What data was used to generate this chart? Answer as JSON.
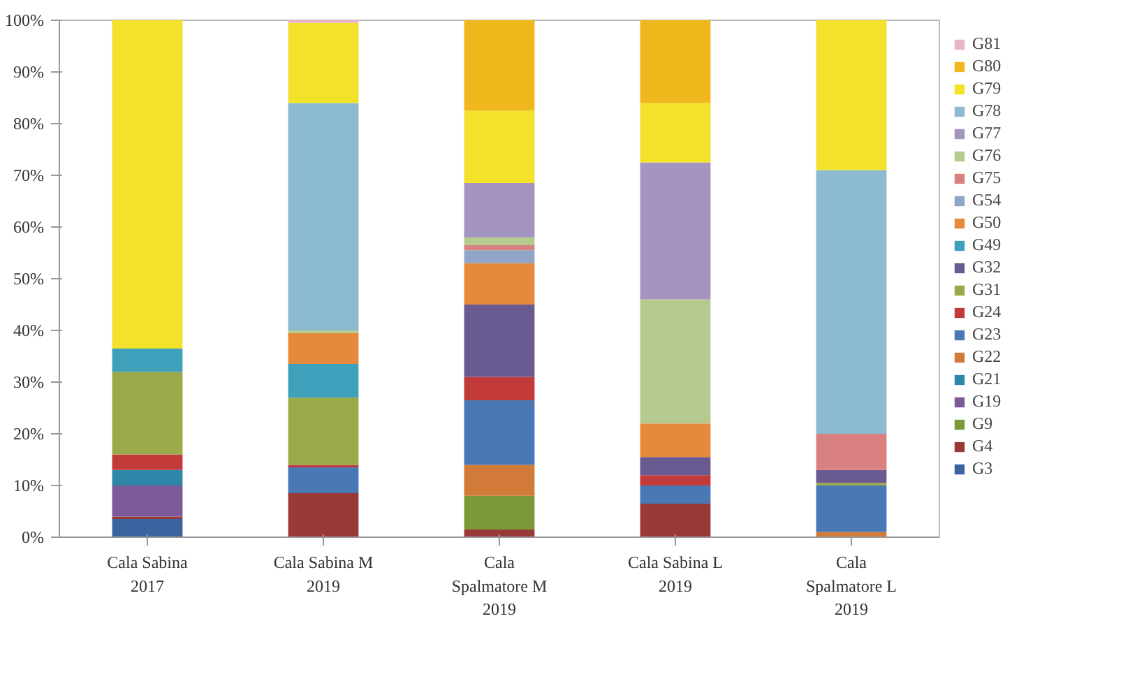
{
  "chart_data": {
    "type": "bar",
    "stacked": true,
    "legend": "right",
    "grid": false,
    "categories": [
      "Cala Sabina\n2017",
      "Cala Sabina M\n2019",
      "Cala\nSpalmatore M\n2019",
      "Cala Sabina L\n2019",
      "Cala\nSpalmatore L\n2019"
    ],
    "ylim": [
      0,
      100
    ],
    "yticks": [
      {
        "value": 0,
        "label": "0%"
      },
      {
        "value": 10,
        "label": "10%"
      },
      {
        "value": 20,
        "label": "20%"
      },
      {
        "value": 30,
        "label": "30%"
      },
      {
        "value": 40,
        "label": "40%"
      },
      {
        "value": 50,
        "label": "50%"
      },
      {
        "value": 60,
        "label": "60%"
      },
      {
        "value": 70,
        "label": "70%"
      },
      {
        "value": 80,
        "label": "80%"
      },
      {
        "value": 90,
        "label": "90%"
      },
      {
        "value": 100,
        "label": "100%"
      }
    ],
    "series": [
      {
        "name": "G3",
        "color": "#3a64a0",
        "values": [
          3.5,
          0,
          0,
          0,
          0
        ]
      },
      {
        "name": "G4",
        "color": "#9a3a38",
        "values": [
          0.5,
          8.5,
          1.5,
          6.5,
          0
        ]
      },
      {
        "name": "G9",
        "color": "#7a9a3a",
        "values": [
          0,
          0,
          6.5,
          0,
          0
        ]
      },
      {
        "name": "G19",
        "color": "#7a5a98",
        "values": [
          6,
          0,
          0,
          0,
          0
        ]
      },
      {
        "name": "G21",
        "color": "#2e86a8",
        "values": [
          3,
          0,
          0,
          0,
          0
        ]
      },
      {
        "name": "G22",
        "color": "#d27a38",
        "values": [
          0,
          0,
          6,
          0,
          1
        ]
      },
      {
        "name": "G23",
        "color": "#4a78b4",
        "values": [
          0,
          5,
          12.5,
          3.5,
          9
        ]
      },
      {
        "name": "G24",
        "color": "#c23a3a",
        "values": [
          3,
          0.5,
          4.5,
          2,
          0
        ]
      },
      {
        "name": "G31",
        "color": "#9aaa4a",
        "values": [
          16,
          13,
          0,
          0,
          0.5
        ]
      },
      {
        "name": "G32",
        "color": "#6a5a92",
        "values": [
          0,
          0,
          14,
          3.5,
          2.5
        ]
      },
      {
        "name": "G49",
        "color": "#3fa0bc",
        "values": [
          4.5,
          6.5,
          0,
          0,
          0
        ]
      },
      {
        "name": "G50",
        "color": "#e58a3a",
        "values": [
          0,
          6,
          8,
          6.5,
          0
        ]
      },
      {
        "name": "G54",
        "color": "#8fa6c8",
        "values": [
          0,
          0,
          2.5,
          0,
          0
        ]
      },
      {
        "name": "G75",
        "color": "#d98080",
        "values": [
          0,
          0,
          1,
          0,
          7
        ]
      },
      {
        "name": "G76",
        "color": "#b6c98e",
        "values": [
          0,
          0.5,
          1.5,
          24,
          0
        ]
      },
      {
        "name": "G77",
        "color": "#a394c0",
        "values": [
          0,
          0,
          10.5,
          26.5,
          0
        ]
      },
      {
        "name": "G78",
        "color": "#8cbad0",
        "values": [
          0,
          44,
          0,
          0,
          51
        ]
      },
      {
        "name": "G79",
        "color": "#f2e22a",
        "values": [
          63.5,
          15.5,
          14,
          11.5,
          29
        ]
      },
      {
        "name": "G80",
        "color": "#f0b81c",
        "values": [
          0,
          0,
          17.5,
          16,
          0
        ]
      },
      {
        "name": "G81",
        "color": "#e8b4c8",
        "values": [
          0,
          0.5,
          0,
          0,
          0
        ]
      }
    ]
  }
}
